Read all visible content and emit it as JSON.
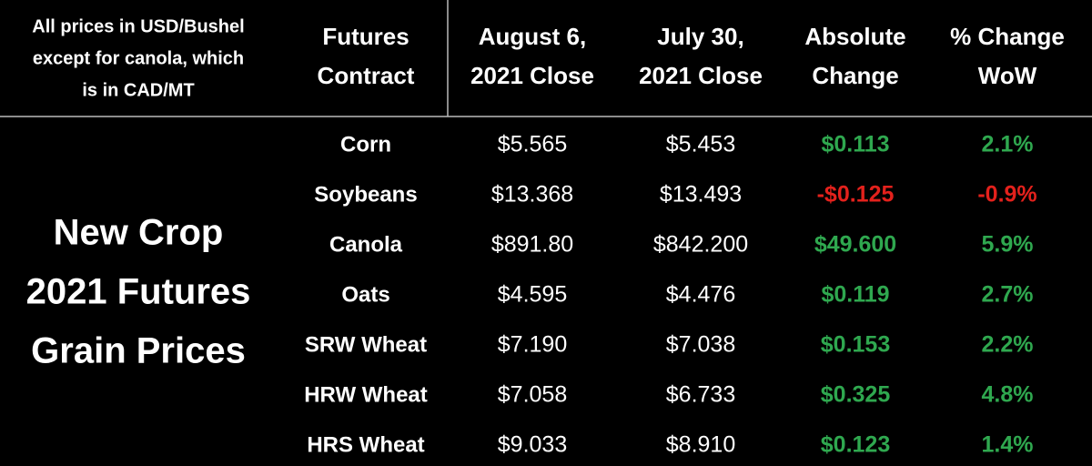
{
  "note": [
    "All prices in USD/Bushel",
    "except for canola, which",
    "is in CAD/MT"
  ],
  "title": [
    "New Crop",
    "2021 Futures",
    "Grain Prices"
  ],
  "header": [
    [
      "Futures",
      "Contract"
    ],
    [
      "August 6,",
      "2021 Close"
    ],
    [
      "July 30,",
      "2021 Close"
    ],
    [
      "Absolute",
      "Change"
    ],
    [
      "% Change",
      "WoW"
    ]
  ],
  "table": {
    "rows": [
      [
        "Corn",
        "$5.565",
        "$5.453",
        "$0.113",
        "2.1%"
      ],
      [
        "Soybeans",
        "$13.368",
        "$13.493",
        "-$0.125",
        "-0.9%"
      ],
      [
        "Canola",
        "$891.80",
        "$842.200",
        "$49.600",
        "5.9%"
      ],
      [
        "Oats",
        "$4.595",
        "$4.476",
        "$0.119",
        "2.7%"
      ],
      [
        "SRW Wheat",
        "$7.190",
        "$7.038",
        "$0.153",
        "2.2%"
      ],
      [
        "HRW Wheat",
        "$7.058",
        "$6.733",
        "$0.325",
        "4.8%"
      ],
      [
        "HRS Wheat",
        "$9.033",
        "$8.910",
        "$0.123",
        "1.4%"
      ]
    ]
  }
}
